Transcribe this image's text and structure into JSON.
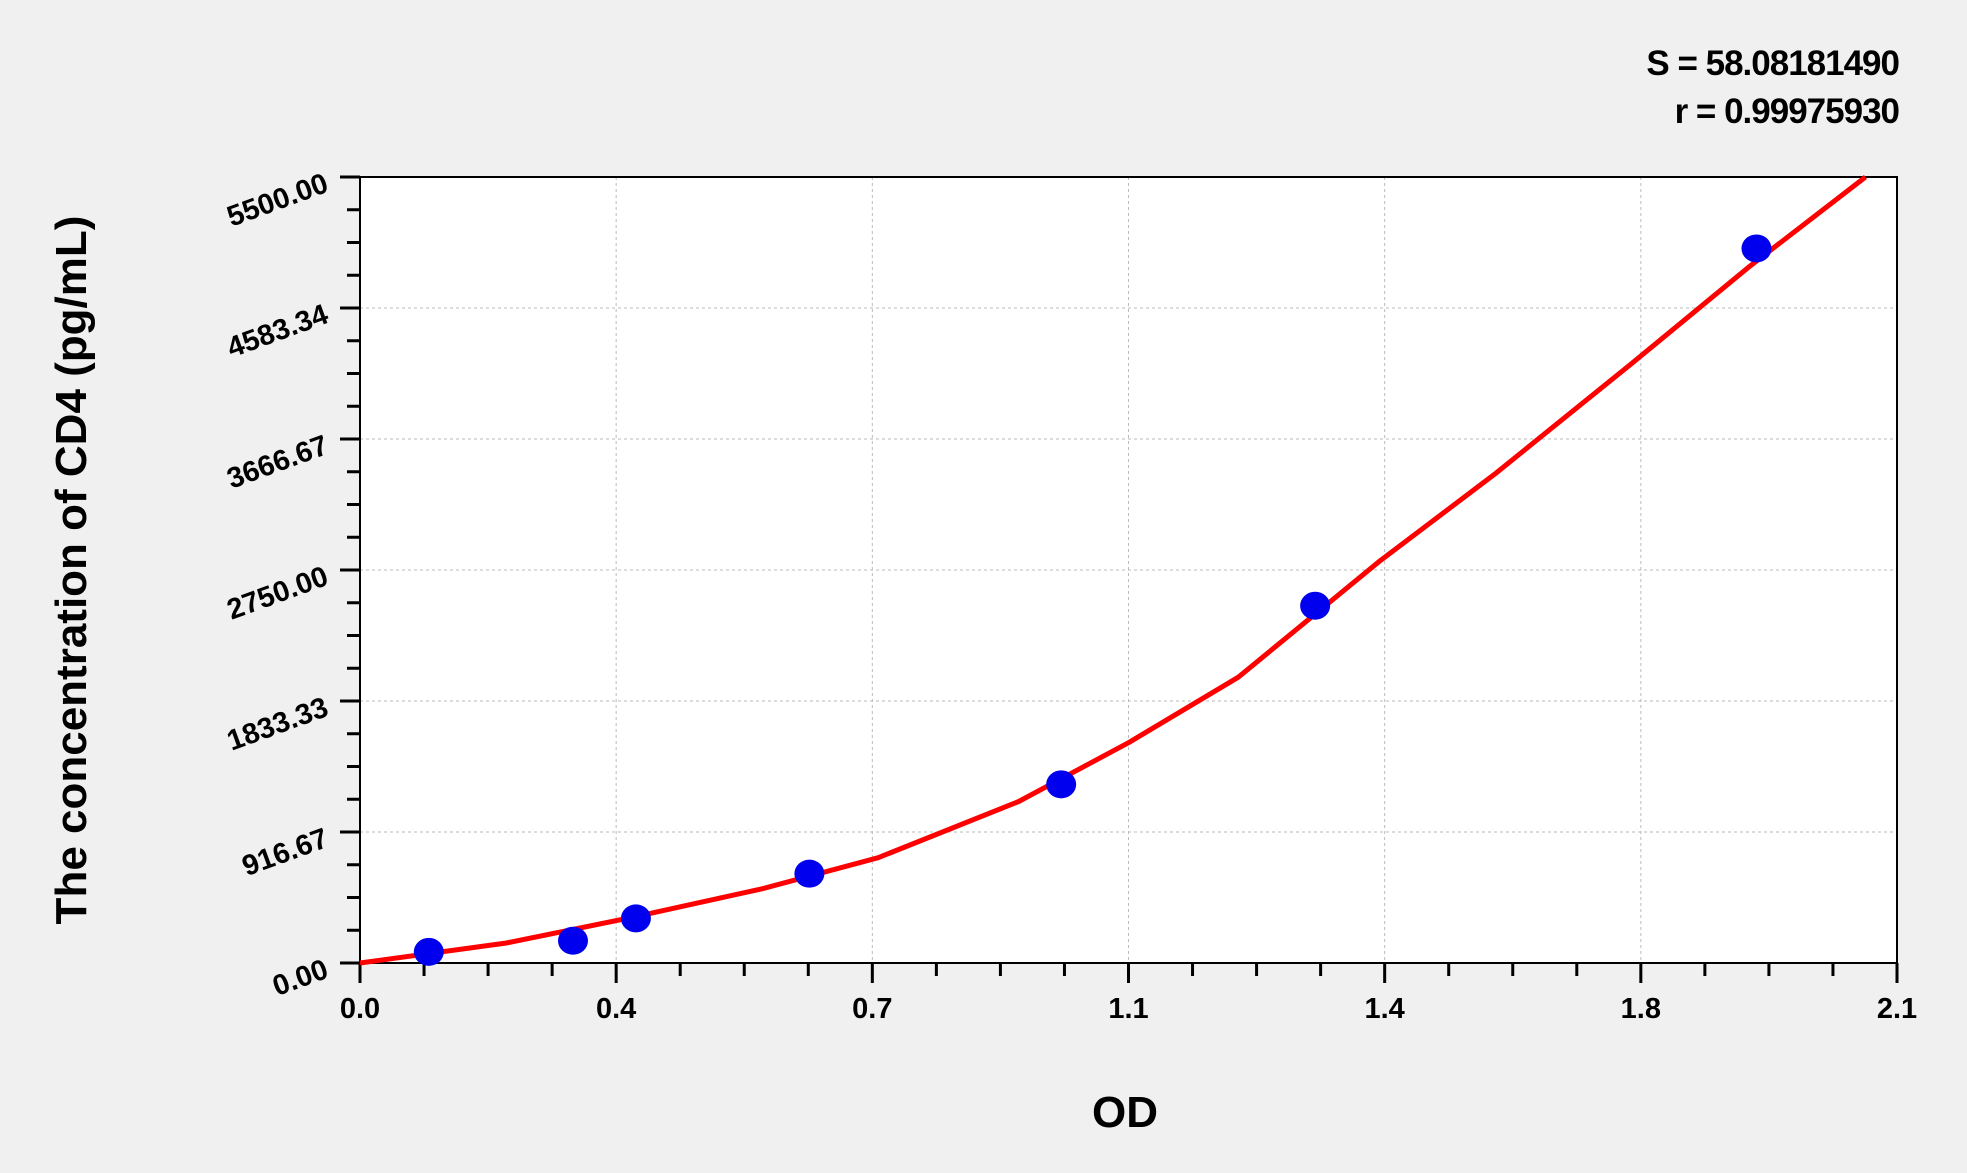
{
  "chart_data": {
    "type": "scatter",
    "title": "",
    "xlabel": "OD",
    "ylabel": "The concentration of CD4 (pg/mL)",
    "xlim": [
      0,
      2.1
    ],
    "ylim": [
      0,
      5500
    ],
    "x_ticks": [
      0,
      0.35,
      0.7,
      1.05,
      1.4,
      1.75,
      2.1
    ],
    "x_tick_labels": [
      "0.0",
      "0.4",
      "0.7",
      "1.1",
      "1.4",
      "1.8",
      "2.1"
    ],
    "y_ticks": [
      0,
      916.67,
      1833.33,
      2750,
      3666.67,
      4583.34,
      5500
    ],
    "y_tick_labels": [
      "0.00",
      "916.67",
      "1833.33",
      "2750.00",
      "3666.67",
      "4583.34",
      "5500.00"
    ],
    "grid": true,
    "points": {
      "x": [
        0.094,
        0.291,
        0.377,
        0.614,
        0.958,
        1.305,
        1.908
      ],
      "y": [
        78,
        156,
        312,
        625,
        1250,
        2500,
        5000
      ],
      "color": "#0000ee"
    },
    "fit_curve": {
      "x": [
        0,
        0.2,
        0.377,
        0.55,
        0.708,
        0.9,
        1.051,
        1.2,
        1.394,
        1.55,
        1.737,
        1.9,
        2.057
      ],
      "y": [
        0,
        140,
        325,
        520,
        737,
        1130,
        1544,
        2000,
        2816,
        3420,
        4193,
        4880,
        5500
      ],
      "color": "#ff0000"
    },
    "annotations": [
      "S = 58.08181490",
      "r = 0.99975930"
    ]
  }
}
